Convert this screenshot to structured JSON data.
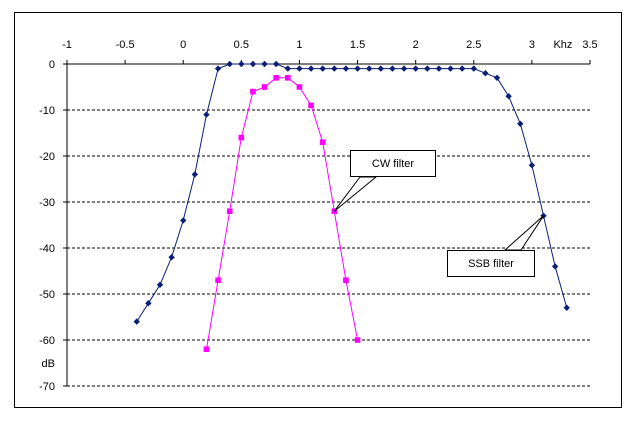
{
  "chart_data": {
    "type": "line",
    "xlim": [
      -1,
      3.5
    ],
    "ylim": [
      -70,
      0
    ],
    "x_ticks": [
      "-1",
      "-0.5",
      "0",
      "0.5",
      "1",
      "1.5",
      "2",
      "2.5",
      "3",
      "3.5"
    ],
    "y_ticks": [
      "0",
      "-10",
      "-20",
      "-30",
      "-40",
      "-50",
      "-60",
      "-70"
    ],
    "x_axis_position": "top",
    "xunit": "Khz",
    "yunit": "dB",
    "grid": "horizontal dashed",
    "series": [
      {
        "name": "SSB filter",
        "color": "#0a1e78",
        "marker": "diamond",
        "points": [
          [
            -0.4,
            -56
          ],
          [
            -0.3,
            -52
          ],
          [
            -0.2,
            -48
          ],
          [
            -0.1,
            -42
          ],
          [
            0.0,
            -34
          ],
          [
            0.1,
            -24
          ],
          [
            0.2,
            -11
          ],
          [
            0.3,
            -1
          ],
          [
            0.4,
            0
          ],
          [
            0.5,
            0
          ],
          [
            0.6,
            0
          ],
          [
            0.7,
            0
          ],
          [
            0.8,
            0
          ],
          [
            0.9,
            -1
          ],
          [
            1.0,
            -1
          ],
          [
            1.1,
            -1
          ],
          [
            1.2,
            -1
          ],
          [
            1.3,
            -1
          ],
          [
            1.4,
            -1
          ],
          [
            1.5,
            -1
          ],
          [
            1.6,
            -1
          ],
          [
            1.7,
            -1
          ],
          [
            1.8,
            -1
          ],
          [
            1.9,
            -1
          ],
          [
            2.0,
            -1
          ],
          [
            2.1,
            -1
          ],
          [
            2.2,
            -1
          ],
          [
            2.3,
            -1
          ],
          [
            2.4,
            -1
          ],
          [
            2.5,
            -1
          ],
          [
            2.6,
            -2
          ],
          [
            2.7,
            -3
          ],
          [
            2.8,
            -7
          ],
          [
            2.9,
            -13
          ],
          [
            3.0,
            -22
          ],
          [
            3.1,
            -33
          ],
          [
            3.2,
            -44
          ],
          [
            3.3,
            -53
          ]
        ]
      },
      {
        "name": "CW filter",
        "color": "#ff00ff",
        "marker": "square",
        "points": [
          [
            0.2,
            -62
          ],
          [
            0.3,
            -47
          ],
          [
            0.4,
            -32
          ],
          [
            0.5,
            -16
          ],
          [
            0.6,
            -6
          ],
          [
            0.7,
            -5
          ],
          [
            0.8,
            -3
          ],
          [
            0.9,
            -3
          ],
          [
            1.0,
            -5
          ],
          [
            1.1,
            -9
          ],
          [
            1.2,
            -17
          ],
          [
            1.3,
            -32
          ],
          [
            1.4,
            -47
          ],
          [
            1.5,
            -60
          ]
        ]
      }
    ],
    "annotations": [
      {
        "text": "CW filter",
        "target_series": "CW filter",
        "target_point": [
          1.3,
          -32
        ]
      },
      {
        "text": "SSB filter",
        "target_series": "SSB filter",
        "target_point": [
          3.1,
          -33
        ]
      }
    ]
  }
}
